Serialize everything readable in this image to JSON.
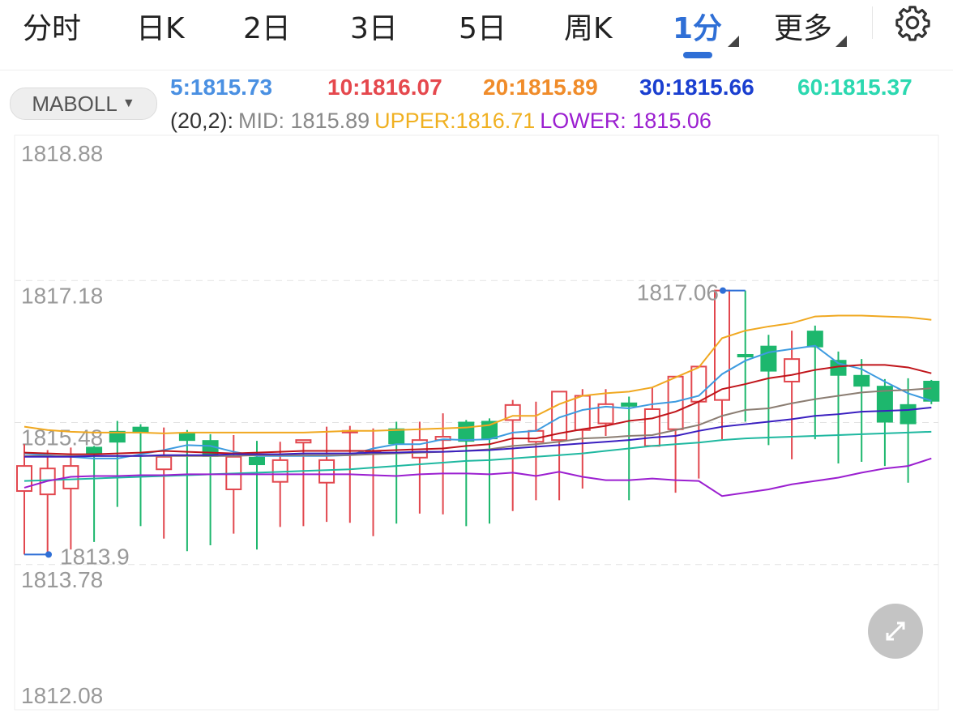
{
  "tabs": [
    {
      "label": "分时"
    },
    {
      "label": "日K"
    },
    {
      "label": "2日"
    },
    {
      "label": "3日"
    },
    {
      "label": "5日"
    },
    {
      "label": "周K"
    },
    {
      "label": "1分",
      "active": true
    },
    {
      "label": "更多"
    }
  ],
  "settings_icon": "gear-icon",
  "indicator": {
    "selected": "MABOLL"
  },
  "ma_legend": [
    {
      "text": "5:1815.73",
      "color": "#4a90e2"
    },
    {
      "text": "10:1816.07",
      "color": "#e5484d"
    },
    {
      "text": "20:1815.89",
      "color": "#f08c2a"
    },
    {
      "text": "30:1815.66",
      "color": "#1a3fd0"
    },
    {
      "text": "60:1815.37",
      "color": "#2bd8b0"
    }
  ],
  "boll_legend": {
    "params": "(20,2):",
    "mid": "MID: 1815.89",
    "upper": "UPPER:1816.71",
    "lower": "LOWER: 1815.06",
    "colors": {
      "params": "#333333",
      "mid": "#888888",
      "upper": "#f0b020",
      "lower": "#9b1fd0"
    }
  },
  "expand_icon": "expand-arrows-icon",
  "chart_data": {
    "type": "candlestick",
    "interval": "1分",
    "y_ticks": [
      "1818.88",
      "1817.18",
      "1815.48",
      "1813.78",
      "1812.08"
    ],
    "ylim": [
      1812.08,
      1818.88
    ],
    "grid": "horizontal dashed",
    "up_color": "#e2474e",
    "down_color": "#1db76d",
    "high_label": "1817.06",
    "low_label": "1813.9",
    "candles": [
      [
        1814.66,
        1814.96,
        1815.22,
        1813.9
      ],
      [
        1814.62,
        1814.93,
        1815.15,
        1813.9
      ],
      [
        1814.69,
        1814.96,
        1815.18,
        1813.96
      ],
      [
        1815.18,
        1815.11,
        1815.2,
        1814.05
      ],
      [
        1815.37,
        1815.25,
        1815.5,
        1814.47
      ],
      [
        1815.42,
        1815.36,
        1815.46,
        1814.24
      ],
      [
        1814.92,
        1815.07,
        1815.42,
        1814.09
      ],
      [
        1815.35,
        1815.27,
        1815.39,
        1813.94
      ],
      [
        1815.26,
        1815.08,
        1815.34,
        1814.01
      ],
      [
        1814.68,
        1815.07,
        1815.33,
        1814.15
      ],
      [
        1815.06,
        1814.98,
        1815.26,
        1813.96
      ],
      [
        1814.77,
        1815.03,
        1815.25,
        1814.23
      ],
      [
        1815.24,
        1815.27,
        1815.27,
        1814.24
      ],
      [
        1814.76,
        1815.03,
        1815.43,
        1814.29
      ],
      [
        1815.37,
        1815.38,
        1815.44,
        1814.28
      ],
      [
        1815.13,
        1815.14,
        1815.41,
        1814.12
      ],
      [
        1815.4,
        1815.23,
        1815.49,
        1814.27
      ],
      [
        1815.06,
        1815.27,
        1815.49,
        1814.39
      ],
      [
        1815.27,
        1815.31,
        1815.59,
        1814.38
      ],
      [
        1815.48,
        1815.26,
        1815.51,
        1814.24
      ],
      [
        1815.49,
        1815.29,
        1815.53,
        1814.27
      ],
      [
        1815.51,
        1815.69,
        1815.75,
        1814.42
      ],
      [
        1815.25,
        1815.38,
        1815.73,
        1814.55
      ],
      [
        1815.27,
        1815.85,
        1815.85,
        1814.55
      ],
      [
        1815.39,
        1815.8,
        1815.88,
        1814.69
      ],
      [
        1815.47,
        1815.7,
        1815.88,
        1815.32
      ],
      [
        1815.71,
        1815.68,
        1815.79,
        1814.55
      ],
      [
        1815.2,
        1815.64,
        1815.9,
        1815.2
      ],
      [
        1815.4,
        1816.03,
        1816.03,
        1814.64
      ],
      [
        1815.73,
        1816.15,
        1816.15,
        1814.81
      ],
      [
        1815.75,
        1817.06,
        1817.06,
        1815.28
      ],
      [
        1816.29,
        1816.28,
        1817.06,
        1815.49
      ],
      [
        1816.39,
        1816.1,
        1816.53,
        1815.21
      ],
      [
        1815.97,
        1816.24,
        1816.58,
        1815.04
      ],
      [
        1816.57,
        1816.39,
        1816.64,
        1815.28
      ],
      [
        1816.22,
        1816.05,
        1816.33,
        1814.99
      ],
      [
        1816.04,
        1815.92,
        1816.24,
        1815.01
      ],
      [
        1815.91,
        1815.49,
        1816.0,
        1814.96
      ],
      [
        1815.69,
        1815.47,
        1816.01,
        1814.76
      ],
      [
        1815.97,
        1815.74,
        1815.99,
        1815.7
      ]
    ],
    "candle_fields": [
      "open",
      "close",
      "high",
      "low"
    ],
    "series": [
      {
        "name": "5",
        "color": "#3d9be0",
        "values": [
          1815.11,
          1815.09,
          1815.07,
          1815.05,
          1815.05,
          1815.1,
          1815.15,
          1815.21,
          1815.2,
          1815.13,
          1815.08,
          1815.08,
          1815.08,
          1815.08,
          1815.09,
          1815.17,
          1815.22,
          1815.22,
          1815.28,
          1815.27,
          1815.28,
          1815.36,
          1815.38,
          1815.54,
          1815.63,
          1815.67,
          1815.65,
          1815.7,
          1815.73,
          1815.8,
          1816.06,
          1816.22,
          1816.32,
          1816.36,
          1816.4,
          1816.19,
          1816.12,
          1815.97,
          1815.83,
          1815.74
        ]
      },
      {
        "name": "10",
        "color": "#c0141a",
        "values": [
          1815.12,
          1815.11,
          1815.1,
          1815.1,
          1815.11,
          1815.12,
          1815.14,
          1815.13,
          1815.12,
          1815.11,
          1815.12,
          1815.13,
          1815.14,
          1815.14,
          1815.14,
          1815.14,
          1815.15,
          1815.16,
          1815.17,
          1815.2,
          1815.22,
          1815.29,
          1815.29,
          1815.35,
          1815.4,
          1815.44,
          1815.5,
          1815.53,
          1815.61,
          1815.73,
          1815.88,
          1815.94,
          1816.01,
          1816.05,
          1816.11,
          1816.15,
          1816.17,
          1816.17,
          1816.14,
          1816.07
        ]
      },
      {
        "name": "MID",
        "color": "#8b7d72",
        "values": [
          1815.08,
          1815.08,
          1815.08,
          1815.08,
          1815.08,
          1815.08,
          1815.08,
          1815.08,
          1815.08,
          1815.08,
          1815.09,
          1815.09,
          1815.09,
          1815.09,
          1815.09,
          1815.1,
          1815.11,
          1815.12,
          1815.13,
          1815.14,
          1815.16,
          1815.2,
          1815.22,
          1815.25,
          1815.29,
          1815.3,
          1815.32,
          1815.33,
          1815.39,
          1815.45,
          1815.56,
          1815.63,
          1815.65,
          1815.71,
          1815.76,
          1815.8,
          1815.84,
          1815.86,
          1815.87,
          1815.89
        ]
      },
      {
        "name": "30",
        "color": "#3a1fc0",
        "values": [
          1815.07,
          1815.07,
          1815.07,
          1815.08,
          1815.08,
          1815.08,
          1815.09,
          1815.09,
          1815.09,
          1815.1,
          1815.1,
          1815.1,
          1815.11,
          1815.11,
          1815.11,
          1815.12,
          1815.12,
          1815.13,
          1815.13,
          1815.14,
          1815.15,
          1815.17,
          1815.19,
          1815.21,
          1815.23,
          1815.25,
          1815.27,
          1815.3,
          1815.32,
          1815.38,
          1815.43,
          1815.46,
          1815.49,
          1815.52,
          1815.56,
          1815.58,
          1815.61,
          1815.62,
          1815.63,
          1815.66
        ]
      },
      {
        "name": "60",
        "color": "#1fb8a0",
        "values": [
          1814.78,
          1814.79,
          1814.8,
          1814.81,
          1814.82,
          1814.83,
          1814.84,
          1814.85,
          1814.86,
          1814.87,
          1814.88,
          1814.89,
          1814.9,
          1814.91,
          1814.92,
          1814.94,
          1814.96,
          1814.98,
          1815.0,
          1815.02,
          1815.03,
          1815.05,
          1815.07,
          1815.09,
          1815.11,
          1815.14,
          1815.17,
          1815.2,
          1815.22,
          1815.24,
          1815.27,
          1815.29,
          1815.3,
          1815.31,
          1815.32,
          1815.33,
          1815.34,
          1815.35,
          1815.36,
          1815.37
        ]
      },
      {
        "name": "UPPER",
        "color": "#f0a820",
        "values": [
          1815.43,
          1815.39,
          1815.37,
          1815.36,
          1815.36,
          1815.36,
          1815.35,
          1815.36,
          1815.36,
          1815.36,
          1815.36,
          1815.36,
          1815.36,
          1815.37,
          1815.38,
          1815.38,
          1815.39,
          1815.4,
          1815.41,
          1815.42,
          1815.45,
          1815.56,
          1815.56,
          1815.7,
          1815.8,
          1815.83,
          1815.85,
          1815.9,
          1816.02,
          1816.14,
          1816.49,
          1816.58,
          1816.63,
          1816.67,
          1816.75,
          1816.76,
          1816.76,
          1816.75,
          1816.74,
          1816.71
        ]
      },
      {
        "name": "LOWER",
        "color": "#9b1fd0",
        "values": [
          1814.7,
          1814.78,
          1814.83,
          1814.84,
          1814.84,
          1814.85,
          1814.85,
          1814.86,
          1814.86,
          1814.86,
          1814.86,
          1814.86,
          1814.86,
          1814.86,
          1814.86,
          1814.85,
          1814.84,
          1814.86,
          1814.87,
          1814.87,
          1814.86,
          1814.88,
          1814.84,
          1814.89,
          1814.83,
          1814.79,
          1814.79,
          1814.81,
          1814.79,
          1814.78,
          1814.6,
          1814.64,
          1814.68,
          1814.74,
          1814.78,
          1814.82,
          1814.88,
          1814.93,
          1814.96,
          1815.05
        ]
      }
    ]
  }
}
